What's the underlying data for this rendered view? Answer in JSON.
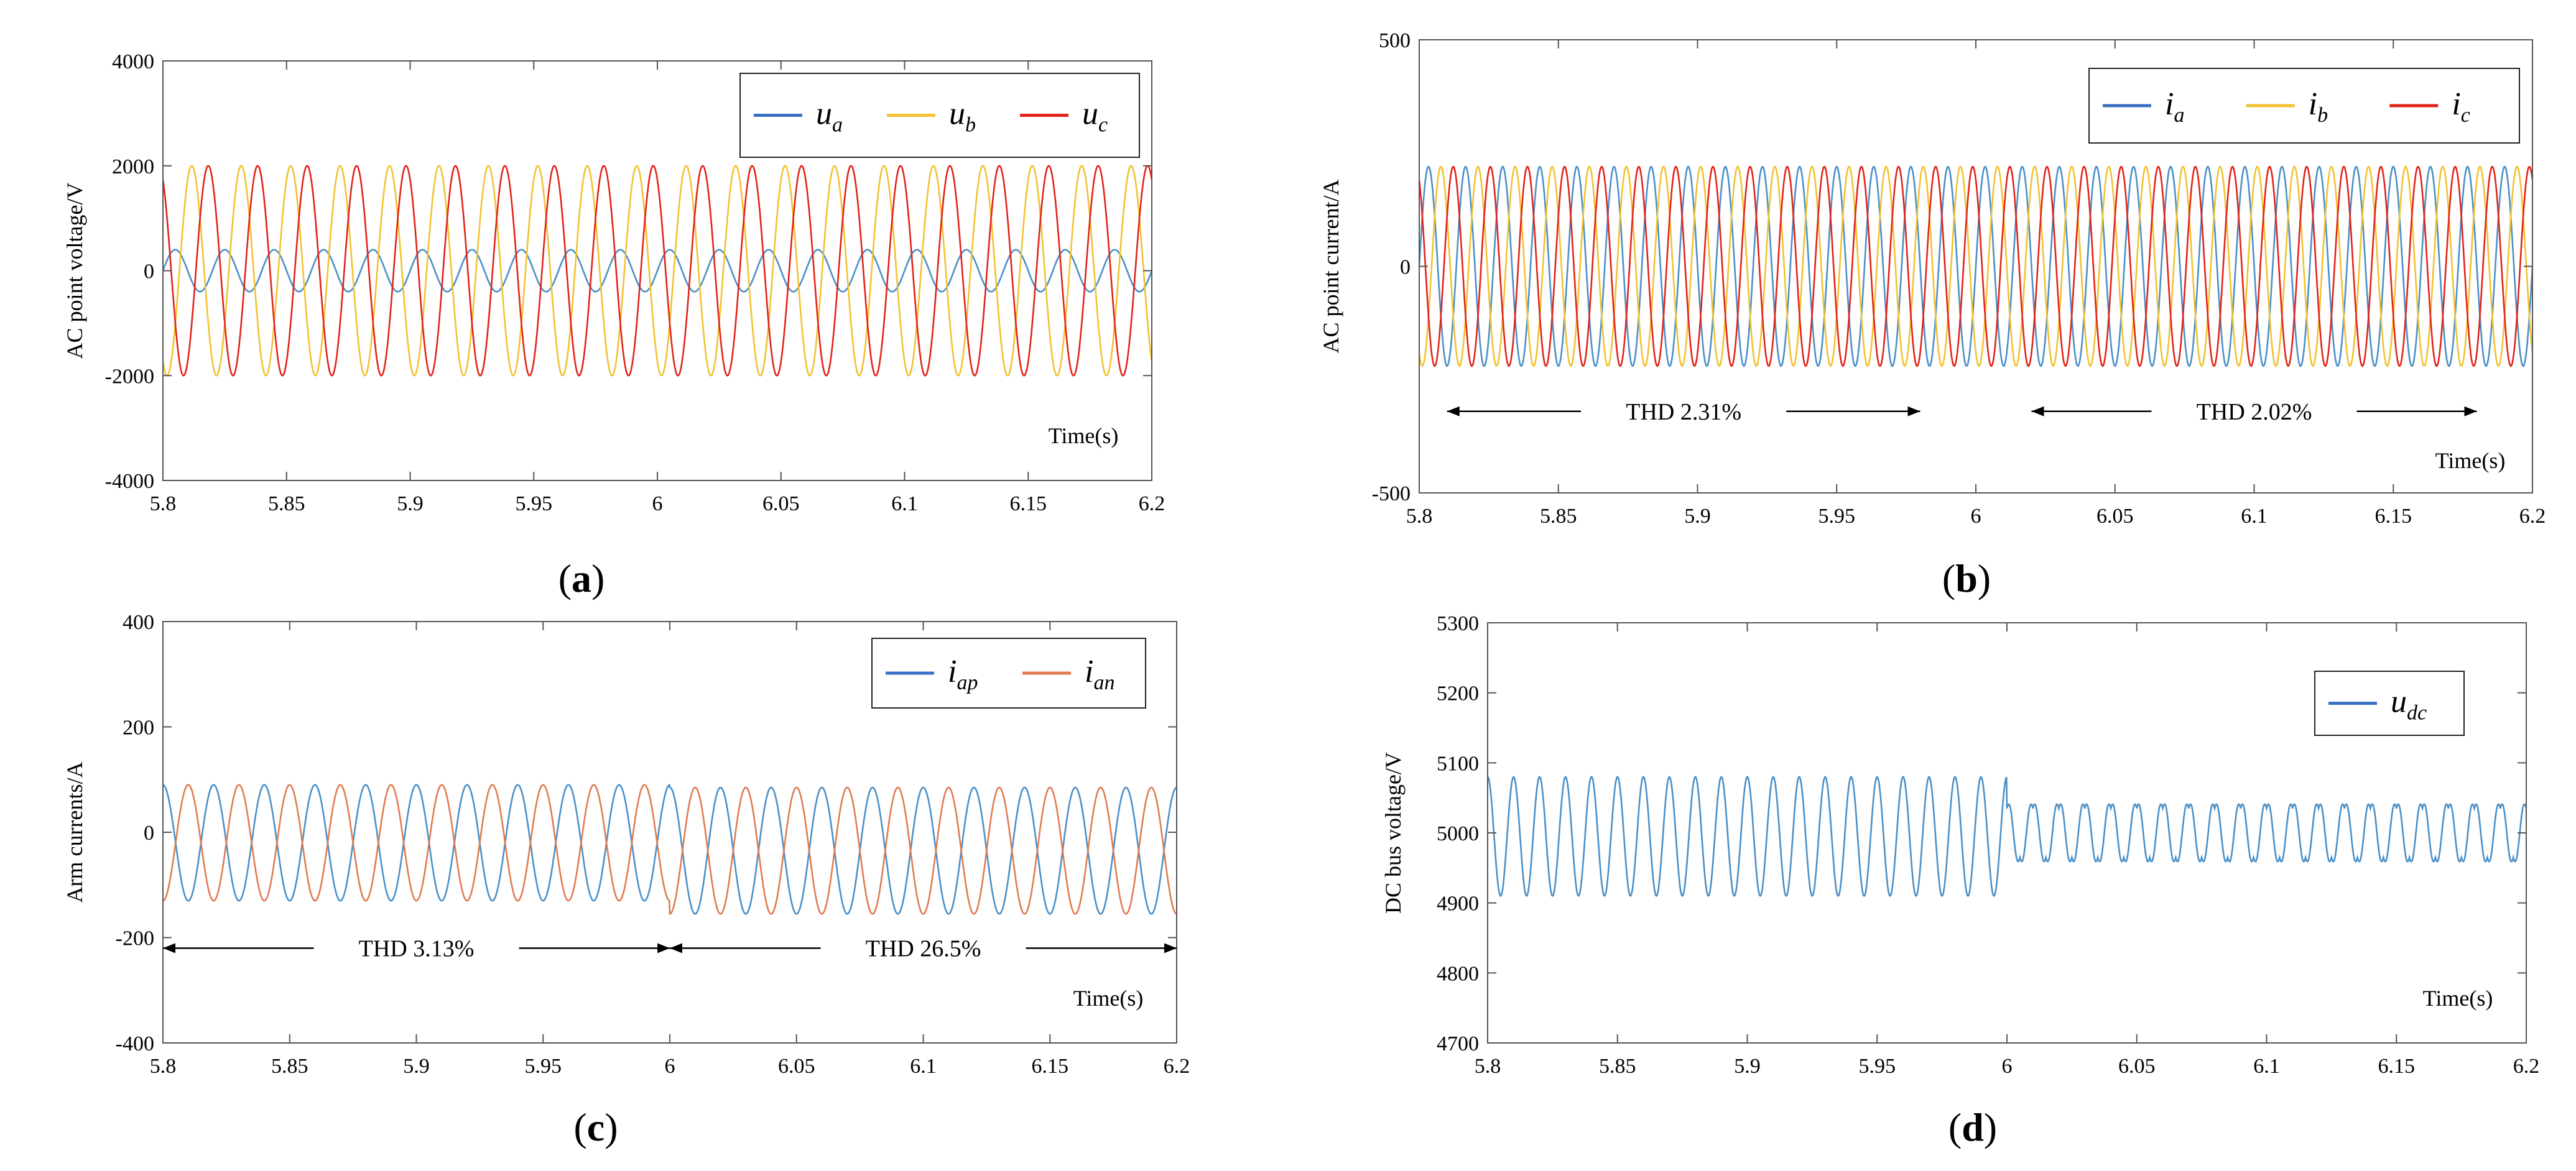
{
  "figure": {
    "panels": [
      "a",
      "b",
      "c",
      "d"
    ]
  },
  "colors": {
    "blue": "#4a90c8",
    "orange": "#e07b50",
    "yellow": "#f2c230",
    "red": "#e2231a",
    "legend_blue": "#3b6fc4"
  },
  "chart_data": [
    {
      "id": "a",
      "type": "line",
      "caption": "(a)",
      "caption_letter": "a",
      "title": "",
      "xlabel": "Time(s)",
      "ylabel": "AC point voltage/V",
      "xlim": [
        5.8,
        6.2
      ],
      "ylim": [
        -4000,
        4000
      ],
      "xticks": [
        "5.8",
        "5.85",
        "5.9",
        "5.95",
        "6",
        "6.05",
        "6.1",
        "6.15",
        "6.2"
      ],
      "yticks": [
        "-4000",
        "-2000",
        "0",
        "2000",
        "4000"
      ],
      "legend_position": "top-right",
      "series": [
        {
          "name": "u",
          "sub": "a",
          "color": "blue",
          "amplitude": 400,
          "phase_deg": 0,
          "freq_hz": 50,
          "offset": 0
        },
        {
          "name": "u",
          "sub": "b",
          "color": "yellow",
          "amplitude": 2000,
          "phase_deg": -120,
          "freq_hz": 50,
          "offset": 0
        },
        {
          "name": "u",
          "sub": "c",
          "color": "red",
          "amplitude": 2000,
          "phase_deg": 120,
          "freq_hz": 50,
          "offset": 0
        }
      ],
      "annotations": []
    },
    {
      "id": "b",
      "type": "line",
      "caption": "(b)",
      "caption_letter": "b",
      "title": "",
      "xlabel": "Time(s)",
      "ylabel": "AC point current/A",
      "xlim": [
        5.8,
        6.2
      ],
      "ylim": [
        -500,
        500
      ],
      "xticks": [
        "5.8",
        "5.85",
        "5.9",
        "5.95",
        "6",
        "6.05",
        "6.1",
        "6.15",
        "6.2"
      ],
      "yticks": [
        "-500",
        "0",
        "500"
      ],
      "legend_position": "top-right",
      "series": [
        {
          "name": "i",
          "sub": "a",
          "color": "blue",
          "amplitude": 220,
          "phase_deg": 0,
          "freq_hz": 75,
          "offset": 0
        },
        {
          "name": "i",
          "sub": "b",
          "color": "yellow",
          "amplitude": 220,
          "phase_deg": -120,
          "freq_hz": 75,
          "offset": 0
        },
        {
          "name": "i",
          "sub": "c",
          "color": "red",
          "amplitude": 220,
          "phase_deg": 120,
          "freq_hz": 75,
          "offset": 0
        }
      ],
      "annotations": [
        {
          "text": "THD 2.31%",
          "x_from": 5.81,
          "x_to": 5.98,
          "y": -320
        },
        {
          "text": "THD 2.02%",
          "x_from": 6.02,
          "x_to": 6.18,
          "y": -320
        }
      ]
    },
    {
      "id": "c",
      "type": "line",
      "caption": "(c)",
      "caption_letter": "c",
      "title": "",
      "xlabel": "Time(s)",
      "ylabel": "Arm currents/A",
      "xlim": [
        5.8,
        6.2
      ],
      "ylim": [
        -400,
        400
      ],
      "xticks": [
        "5.8",
        "5.85",
        "5.9",
        "5.95",
        "6",
        "6.05",
        "6.1",
        "6.15",
        "6.2"
      ],
      "yticks": [
        "-400",
        "-200",
        "0",
        "200",
        "400"
      ],
      "legend_position": "top-right",
      "series": [
        {
          "name": "i",
          "sub": "ap",
          "color": "blue",
          "amplitude": 110,
          "phase_deg": 90,
          "freq_hz": 50,
          "offset": -20,
          "amplitude_after_6": 120,
          "offset_after_6": -35
        },
        {
          "name": "i",
          "sub": "an",
          "color": "orange",
          "amplitude": 110,
          "phase_deg": -90,
          "freq_hz": 50,
          "offset": -20,
          "amplitude_after_6": 120,
          "offset_after_6": -35
        }
      ],
      "annotations": [
        {
          "text": "THD 3.13%",
          "x_from": 5.8,
          "x_to": 6.0,
          "y": -220
        },
        {
          "text": "THD 26.5%",
          "x_from": 6.0,
          "x_to": 6.2,
          "y": -220
        }
      ]
    },
    {
      "id": "d",
      "type": "line",
      "caption": "(d)",
      "caption_letter": "d",
      "title": "",
      "xlabel": "Time(s)",
      "ylabel": "DC bus voltage/V",
      "xlim": [
        5.8,
        6.2
      ],
      "ylim": [
        4700,
        5300
      ],
      "xticks": [
        "5.8",
        "5.85",
        "5.9",
        "5.95",
        "6",
        "6.05",
        "6.1",
        "6.15",
        "6.2"
      ],
      "yticks": [
        "4700",
        "4800",
        "4900",
        "5000",
        "5100",
        "5200",
        "5300"
      ],
      "legend_position": "top-right",
      "series": [
        {
          "name": "u",
          "sub": "dc",
          "color": "blue",
          "amplitude": 85,
          "phase_deg": 90,
          "freq_hz": 100,
          "offset": 4995,
          "amplitude_after_6": 35,
          "offset_after_6": 5000
        }
      ],
      "annotations": []
    }
  ]
}
